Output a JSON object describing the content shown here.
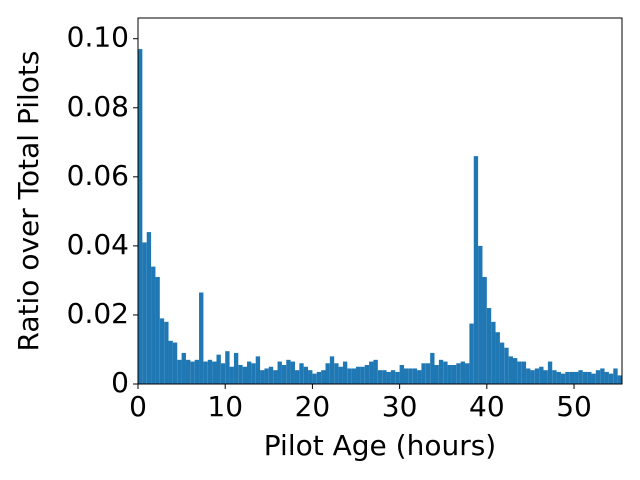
{
  "chart_data": {
    "type": "histogram",
    "xlabel": "Pilot Age (hours)",
    "ylabel": "Ratio over Total Pilots",
    "color": "#1f77b4",
    "bins": [
      0,
      0.5,
      1,
      1.5,
      2,
      2.5,
      3,
      3.5,
      4,
      4.5,
      5,
      5.5,
      6,
      6.5,
      7,
      7.5,
      8,
      8.5,
      9,
      9.5,
      10,
      10.5,
      11,
      11.5,
      12,
      12.5,
      13,
      13.5,
      14,
      14.5,
      15,
      15.5,
      16,
      16.5,
      17,
      17.5,
      18,
      18.5,
      19,
      19.5,
      20,
      20.5,
      21,
      21.5,
      22,
      22.5,
      23,
      23.5,
      24,
      24.5,
      25,
      25.5,
      26,
      26.5,
      27,
      27.5,
      28,
      28.5,
      29,
      29.5,
      30,
      30.5,
      31,
      31.5,
      32,
      32.5,
      33,
      33.5,
      34,
      34.5,
      35,
      35.5,
      36,
      36.5,
      37,
      37.5,
      38,
      38.5,
      39,
      39.5,
      40,
      40.5,
      41,
      41.5,
      42,
      42.5,
      43,
      43.5,
      44,
      44.5,
      45,
      45.5,
      46,
      46.5,
      47,
      47.5,
      48,
      48.5,
      49,
      49.5,
      50,
      50.5,
      51,
      51.5,
      52,
      52.5,
      53,
      53.5,
      54,
      54.5,
      55,
      55.5
    ],
    "values": [
      0.097,
      0.041,
      0.044,
      0.034,
      0.031,
      0.019,
      0.018,
      0.0125,
      0.012,
      0.007,
      0.009,
      0.007,
      0.0065,
      0.007,
      0.0265,
      0.0065,
      0.007,
      0.0065,
      0.0085,
      0.006,
      0.0095,
      0.005,
      0.009,
      0.0055,
      0.005,
      0.0065,
      0.006,
      0.008,
      0.004,
      0.0045,
      0.005,
      0.004,
      0.0065,
      0.0055,
      0.007,
      0.0065,
      0.004,
      0.006,
      0.005,
      0.004,
      0.003,
      0.0035,
      0.004,
      0.006,
      0.008,
      0.006,
      0.005,
      0.0065,
      0.0045,
      0.0045,
      0.005,
      0.005,
      0.0055,
      0.0065,
      0.007,
      0.004,
      0.004,
      0.0035,
      0.004,
      0.0035,
      0.0055,
      0.0045,
      0.0045,
      0.0045,
      0.004,
      0.006,
      0.006,
      0.009,
      0.0055,
      0.007,
      0.0065,
      0.0055,
      0.0055,
      0.006,
      0.0065,
      0.006,
      0.0175,
      0.066,
      0.04,
      0.031,
      0.022,
      0.018,
      0.015,
      0.012,
      0.0105,
      0.008,
      0.0075,
      0.0065,
      0.0065,
      0.0045,
      0.004,
      0.0045,
      0.005,
      0.004,
      0.0065,
      0.004,
      0.0035,
      0.003,
      0.0035,
      0.0035,
      0.0035,
      0.004,
      0.0035,
      0.0035,
      0.003,
      0.004,
      0.0045,
      0.0035,
      0.003,
      0.0045,
      0.0025
    ],
    "xlim": [
      0,
      55.5
    ],
    "ylim": [
      0,
      0.106
    ],
    "xticks": [
      0,
      10,
      20,
      30,
      40,
      50
    ],
    "yticks": [
      0,
      0.02,
      0.04,
      0.06,
      0.08,
      {
        "value": 0.1,
        "label": "0.10"
      }
    ]
  }
}
